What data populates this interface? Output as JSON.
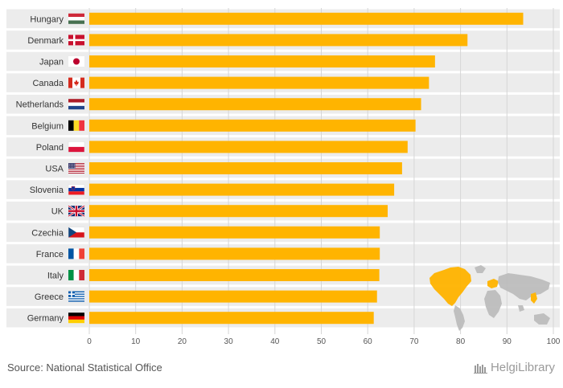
{
  "chart_data": {
    "type": "bar",
    "orientation": "horizontal",
    "categories": [
      "Hungary",
      "Denmark",
      "Japan",
      "Canada",
      "Netherlands",
      "Belgium",
      "Poland",
      "USA",
      "Slovenia",
      "UK",
      "Czechia",
      "France",
      "Italy",
      "Greece",
      "Germany"
    ],
    "values": [
      93.5,
      81.5,
      74.5,
      73.2,
      71.5,
      70.3,
      68.6,
      67.4,
      65.7,
      64.3,
      62.6,
      62.6,
      62.5,
      62.0,
      61.3
    ],
    "xlim": [
      0,
      100
    ],
    "xticks": [
      0,
      10,
      20,
      30,
      40,
      50,
      60,
      70,
      80,
      90,
      100
    ],
    "bar_color": "#FFB400",
    "band_color": "#ECECEC",
    "grid": true,
    "flag_icons": [
      "hungary-flag-icon",
      "denmark-flag-icon",
      "japan-flag-icon",
      "canada-flag-icon",
      "netherlands-flag-icon",
      "belgium-flag-icon",
      "poland-flag-icon",
      "usa-flag-icon",
      "slovenia-flag-icon",
      "uk-flag-icon",
      "czechia-flag-icon",
      "france-flag-icon",
      "italy-flag-icon",
      "greece-flag-icon",
      "germany-flag-icon"
    ]
  },
  "footer": {
    "source": "Source: National Statistical Office",
    "brand": "HelgiLibrary"
  }
}
